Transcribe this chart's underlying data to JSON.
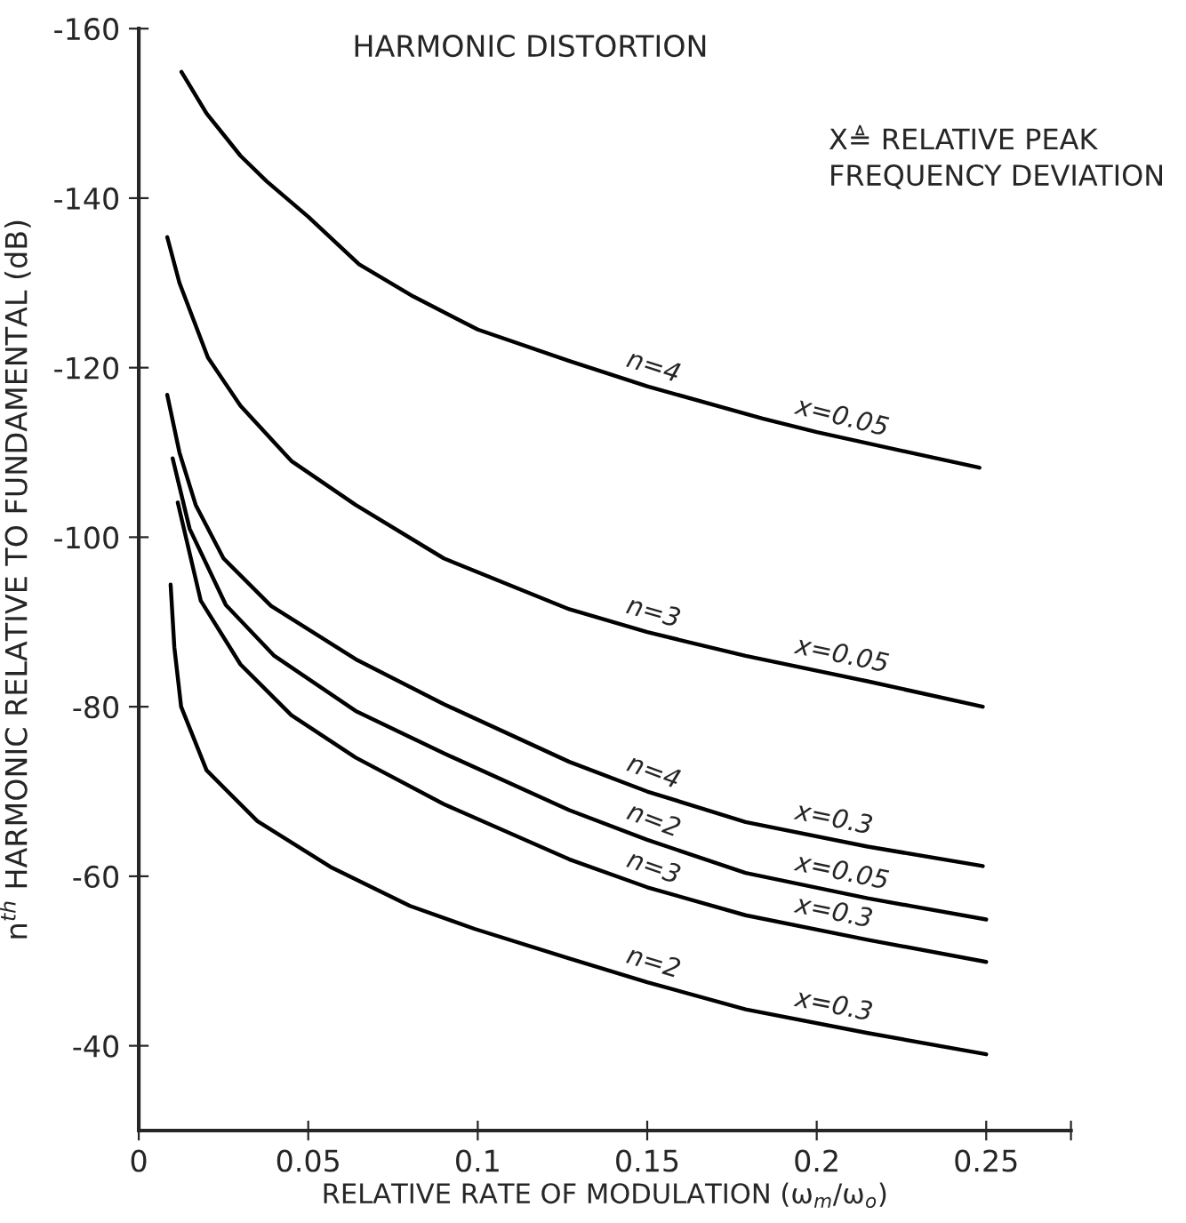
{
  "chart_data": {
    "type": "line",
    "title": "HARMONIC DISTORTION",
    "xlabel": "RELATIVE RATE OF MODULATION (ω$_{m}$/ω$_{o}$)",
    "ylabel": "n$^{th}$ HARMONIC RELATIVE TO FUNDAMENTAL (dB)",
    "xlim": [
      0,
      0.275
    ],
    "xticks": [
      0,
      0.05,
      0.1,
      0.15,
      0.2,
      0.25,
      {
        "value": 0.275,
        "label": null
      }
    ],
    "ylim": [
      -30,
      -160
    ],
    "yticks": [
      -160,
      -140,
      -120,
      -100,
      -80,
      -60,
      -40
    ],
    "grid": false,
    "marker": "none",
    "line_style": "solid",
    "series": [
      {
        "color": "#000000",
        "x": [
          0.0126,
          0.02,
          0.03,
          0.0377,
          0.05,
          0.065,
          0.081,
          0.1,
          0.127,
          0.15,
          0.184,
          0.2,
          0.225,
          0.248
        ],
        "values": [
          -154.9,
          -150,
          -145,
          -142,
          -137.8,
          -132.2,
          -128.4,
          -124.5,
          -120.8,
          -117.8,
          -114,
          -112.4,
          -110.2,
          -108.2
        ]
      },
      {
        "color": "#000000",
        "x": [
          0.0084,
          0.012,
          0.0204,
          0.03,
          0.045,
          0.064,
          0.09,
          0.127,
          0.15,
          0.179,
          0.215,
          0.249
        ],
        "values": [
          -135.4,
          -130,
          -121.2,
          -115.5,
          -109,
          -103.8,
          -97.5,
          -91.5,
          -88.8,
          -86.0,
          -83,
          -80.0
        ]
      },
      {
        "color": "#000000",
        "x": [
          0.0084,
          0.012,
          0.0168,
          0.025,
          0.039,
          0.064,
          0.09,
          0.127,
          0.15,
          0.179,
          0.215,
          0.249
        ],
        "values": [
          -116.8,
          -110,
          -103.8,
          -97.5,
          -91.9,
          -85.6,
          -80.3,
          -73.5,
          -70,
          -66.4,
          -63.5,
          -61.2
        ]
      },
      {
        "color": "#000000",
        "x": [
          0.01,
          0.015,
          0.0257,
          0.04,
          0.064,
          0.09,
          0.127,
          0.15,
          0.179,
          0.215,
          0.25
        ],
        "values": [
          -109.3,
          -101,
          -92,
          -86,
          -79.5,
          -74.5,
          -67.8,
          -64.3,
          -60.4,
          -57.4,
          -54.9
        ]
      },
      {
        "color": "#000000",
        "x": [
          0.0115,
          0.0183,
          0.03,
          0.045,
          0.064,
          0.09,
          0.127,
          0.15,
          0.179,
          0.215,
          0.25
        ],
        "values": [
          -104.1,
          -92.5,
          -85,
          -79,
          -74,
          -68.5,
          -62,
          -58.7,
          -55.4,
          -52.5,
          -49.9
        ]
      },
      {
        "color": "#000000",
        "x": [
          0.0094,
          0.0105,
          0.0125,
          0.02,
          0.035,
          0.057,
          0.08,
          0.099,
          0.127,
          0.15,
          0.179,
          0.215,
          0.25
        ],
        "values": [
          -94.4,
          -87,
          -80,
          -72.5,
          -66.5,
          -61,
          -56.5,
          -53.8,
          -50.3,
          -47.5,
          -44.3,
          -41.5,
          -39.0
        ]
      }
    ],
    "annotations": [
      "X≜ RELATIVE PEAK\nFREQUENCY DEVIATION",
      "n=4",
      "x=0.05",
      "n=3",
      "x=0.05",
      "n=4",
      "x=0.3",
      "n=2",
      "x=0.05",
      "n=3",
      "x=0.3",
      "n=2",
      "x=0.3"
    ]
  }
}
